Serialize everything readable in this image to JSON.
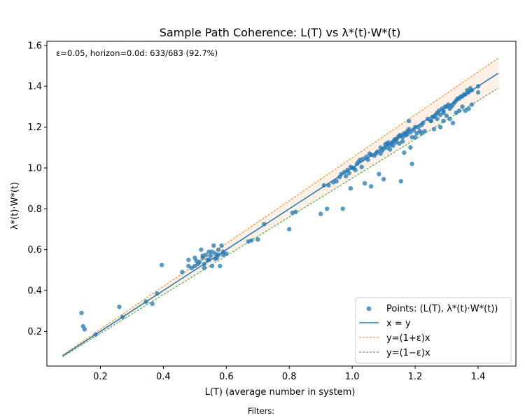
{
  "chart_data": {
    "type": "scatter",
    "title": "Sample Path Coherence: L(T) vs λ*(t)·W*(t)",
    "xlabel": "L(T)  (average number in system)",
    "ylabel": "λ*(t)·W*(t)",
    "xlim": [
      0.03,
      1.52
    ],
    "ylim": [
      0.03,
      1.62
    ],
    "x_ticks": [
      0.2,
      0.4,
      0.6,
      0.8,
      1.0,
      1.2,
      1.4
    ],
    "y_ticks": [
      0.2,
      0.4,
      0.6,
      0.8,
      1.0,
      1.2,
      1.4,
      1.6
    ],
    "annotation": "ε=0.05, horizon=0.0d:  633/683  (92.7%)",
    "epsilon": 0.05,
    "line_range": [
      0.08,
      1.465
    ],
    "legend_position": "lower right",
    "grid": false,
    "series": [
      {
        "name": "Points: (L(T), λ*(t)·W*(t))",
        "kind": "scatter",
        "color": "#1f77b4",
        "points": [
          [
            0.14,
            0.29
          ],
          [
            0.145,
            0.225
          ],
          [
            0.15,
            0.21
          ],
          [
            0.185,
            0.185
          ],
          [
            0.26,
            0.32
          ],
          [
            0.27,
            0.27
          ],
          [
            0.345,
            0.345
          ],
          [
            0.365,
            0.335
          ],
          [
            0.38,
            0.385
          ],
          [
            0.395,
            0.525
          ],
          [
            0.46,
            0.49
          ],
          [
            0.48,
            0.52
          ],
          [
            0.48,
            0.55
          ],
          [
            0.49,
            0.51
          ],
          [
            0.5,
            0.52
          ],
          [
            0.5,
            0.56
          ],
          [
            0.51,
            0.53
          ],
          [
            0.515,
            0.54
          ],
          [
            0.52,
            0.6
          ],
          [
            0.525,
            0.56
          ],
          [
            0.53,
            0.51
          ],
          [
            0.535,
            0.575
          ],
          [
            0.54,
            0.55
          ],
          [
            0.545,
            0.59
          ],
          [
            0.55,
            0.57
          ],
          [
            0.555,
            0.52
          ],
          [
            0.56,
            0.62
          ],
          [
            0.565,
            0.58
          ],
          [
            0.57,
            0.56
          ],
          [
            0.575,
            0.6
          ],
          [
            0.58,
            0.52
          ],
          [
            0.585,
            0.62
          ],
          [
            0.59,
            0.59
          ],
          [
            0.6,
            0.58
          ],
          [
            0.505,
            0.545
          ],
          [
            0.525,
            0.57
          ],
          [
            0.545,
            0.55
          ],
          [
            0.565,
            0.555
          ],
          [
            0.575,
            0.575
          ],
          [
            0.555,
            0.59
          ],
          [
            0.53,
            0.53
          ],
          [
            0.59,
            0.575
          ],
          [
            0.67,
            0.64
          ],
          [
            0.68,
            0.645
          ],
          [
            0.7,
            0.65
          ],
          [
            0.72,
            0.725
          ],
          [
            0.8,
            0.7
          ],
          [
            0.81,
            0.78
          ],
          [
            0.82,
            0.785
          ],
          [
            0.9,
            0.775
          ],
          [
            0.91,
            0.915
          ],
          [
            0.92,
            0.8
          ],
          [
            0.925,
            0.915
          ],
          [
            0.94,
            0.93
          ],
          [
            0.95,
            0.935
          ],
          [
            0.96,
            0.955
          ],
          [
            0.965,
            0.97
          ],
          [
            0.97,
            0.8
          ],
          [
            0.975,
            0.98
          ],
          [
            0.98,
            0.96
          ],
          [
            0.99,
            0.975
          ],
          [
            0.995,
            0.9
          ],
          [
            1.0,
            1.0
          ],
          [
            1.01,
            0.99
          ],
          [
            1.02,
            1.03
          ],
          [
            1.03,
            1.005
          ],
          [
            1.04,
            0.925
          ],
          [
            1.05,
            1.04
          ],
          [
            1.06,
            0.91
          ],
          [
            1.07,
            1.06
          ],
          [
            1.08,
            1.08
          ],
          [
            1.085,
            0.97
          ],
          [
            1.09,
            1.07
          ],
          [
            1.1,
            0.945
          ],
          [
            1.1,
            1.095
          ],
          [
            1.11,
            1.1
          ],
          [
            1.12,
            1.11
          ],
          [
            1.13,
            1.13
          ],
          [
            1.14,
            1.125
          ],
          [
            1.15,
            1.16
          ],
          [
            1.155,
            0.935
          ],
          [
            1.16,
            1.15
          ],
          [
            1.165,
            1.075
          ],
          [
            1.17,
            1.17
          ],
          [
            1.175,
            1.18
          ],
          [
            1.18,
            1.19
          ],
          [
            1.185,
            1.1
          ],
          [
            1.19,
            1.02
          ],
          [
            1.2,
            1.2
          ],
          [
            1.21,
            1.2
          ],
          [
            1.22,
            1.21
          ],
          [
            1.23,
            1.18
          ],
          [
            1.24,
            1.24
          ],
          [
            1.25,
            1.23
          ],
          [
            1.26,
            1.25
          ],
          [
            1.27,
            1.27
          ],
          [
            1.28,
            1.26
          ],
          [
            1.29,
            1.28
          ],
          [
            1.3,
            1.3
          ],
          [
            1.31,
            1.29
          ],
          [
            1.32,
            1.31
          ],
          [
            1.33,
            1.33
          ],
          [
            1.34,
            1.34
          ],
          [
            1.35,
            1.35
          ],
          [
            1.36,
            1.36
          ],
          [
            1.37,
            1.37
          ],
          [
            1.38,
            1.38
          ],
          [
            1.4,
            1.4
          ],
          [
            1.4,
            1.37
          ],
          [
            1.32,
            1.22
          ],
          [
            1.33,
            1.27
          ],
          [
            1.36,
            1.28
          ],
          [
            1.37,
            1.29
          ],
          [
            1.38,
            1.31
          ],
          [
            1.35,
            1.3
          ],
          [
            1.34,
            1.28
          ],
          [
            1.29,
            1.23
          ],
          [
            1.3,
            1.255
          ],
          [
            1.28,
            1.2
          ],
          [
            1.26,
            1.19
          ],
          [
            1.25,
            1.23
          ],
          [
            1.22,
            1.17
          ],
          [
            1.19,
            1.15
          ],
          [
            1.2,
            1.15
          ],
          [
            1.15,
            1.12
          ],
          [
            1.13,
            1.11
          ],
          [
            1.12,
            1.09
          ],
          [
            1.11,
            1.12
          ],
          [
            1.17,
            1.16
          ],
          [
            1.18,
            1.23
          ],
          [
            1.16,
            1.13
          ],
          [
            1.14,
            1.14
          ],
          [
            1.205,
            1.17
          ],
          [
            1.215,
            1.18
          ],
          [
            1.225,
            1.22
          ],
          [
            1.255,
            1.25
          ],
          [
            1.265,
            1.26
          ],
          [
            1.275,
            1.28
          ],
          [
            1.285,
            1.29
          ],
          [
            1.295,
            1.3
          ],
          [
            1.305,
            1.31
          ],
          [
            1.315,
            1.3
          ],
          [
            1.325,
            1.32
          ],
          [
            1.335,
            1.34
          ],
          [
            1.345,
            1.35
          ],
          [
            1.355,
            1.36
          ],
          [
            1.365,
            1.38
          ],
          [
            1.375,
            1.39
          ],
          [
            1.29,
            1.27
          ],
          [
            1.31,
            1.24
          ],
          [
            1.27,
            1.24
          ],
          [
            1.06,
            1.065
          ],
          [
            1.075,
            1.07
          ],
          [
            1.09,
            1.1
          ],
          [
            1.095,
            1.085
          ],
          [
            1.105,
            1.115
          ],
          [
            1.115,
            1.125
          ],
          [
            1.125,
            1.12
          ],
          [
            1.135,
            1.14
          ],
          [
            1.145,
            1.15
          ],
          [
            1.155,
            1.16
          ],
          [
            1.165,
            1.17
          ],
          [
            1.175,
            1.165
          ],
          [
            1.185,
            1.175
          ],
          [
            1.195,
            1.185
          ],
          [
            1.025,
            1.04
          ],
          [
            1.035,
            1.045
          ],
          [
            1.045,
            1.055
          ],
          [
            1.055,
            1.07
          ],
          [
            0.985,
            0.99
          ],
          [
            0.995,
            1.005
          ],
          [
            1.005,
            1.0
          ],
          [
            1.015,
            1.02
          ]
        ]
      },
      {
        "name": "x = y",
        "kind": "line",
        "slope": 1.0,
        "color": "#1f77b4"
      },
      {
        "name": "y=(1+ε)x",
        "kind": "dashed",
        "slope": 1.05,
        "color": "#ff7f0e"
      },
      {
        "name": "y=(1−ε)x",
        "kind": "dashed",
        "slope": 0.95,
        "color": "#2ca02c"
      }
    ],
    "band_color": "#fde6d4"
  },
  "footer": {
    "filters_label": "Filters:"
  }
}
